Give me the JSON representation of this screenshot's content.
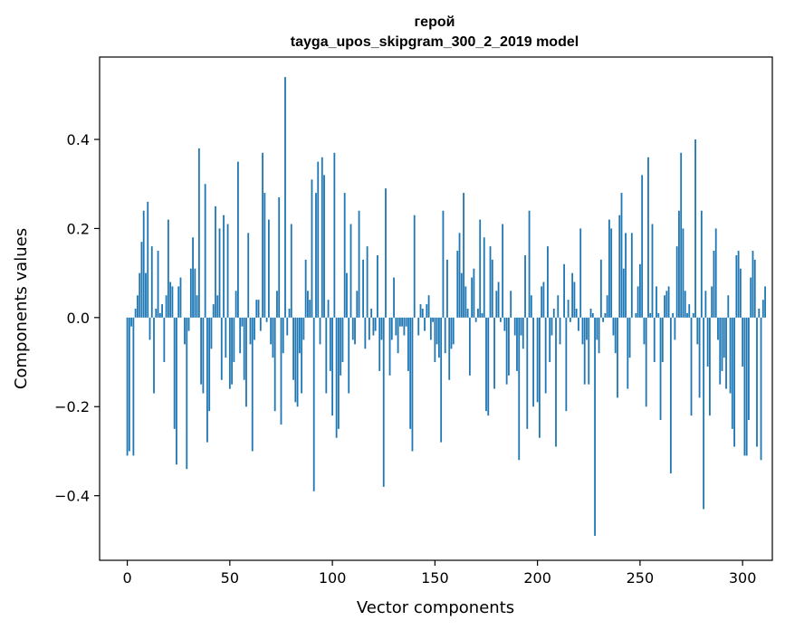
{
  "chart_data": {
    "type": "bar",
    "title": "герой",
    "subtitle": "tayga_upos_skipgram_300_2_2019 model",
    "xlabel": "Vector components",
    "ylabel": "Components values",
    "xlim": [
      -13.5,
      314.5
    ],
    "ylim": [
      -0.545,
      0.585
    ],
    "xticks": [
      0,
      50,
      100,
      150,
      200,
      250,
      300
    ],
    "yticks": [
      -0.4,
      -0.2,
      0.0,
      0.2,
      0.4
    ],
    "ytick_labels": [
      "−0.4",
      "−0.2",
      "0.0",
      "0.2",
      "0.4"
    ],
    "bar_color": "#1f77b4",
    "series": [
      {
        "name": "герой",
        "values": [
          -0.31,
          -0.3,
          -0.02,
          -0.31,
          0.02,
          0.05,
          0.1,
          0.17,
          0.24,
          0.1,
          0.26,
          -0.05,
          0.16,
          -0.17,
          0.02,
          0.15,
          0.01,
          0.03,
          -0.1,
          0.05,
          0.22,
          0.08,
          0.07,
          -0.25,
          -0.33,
          0.07,
          0.09,
          0.0,
          -0.06,
          -0.34,
          -0.03,
          0.11,
          0.18,
          0.11,
          0.05,
          0.38,
          -0.15,
          -0.17,
          0.3,
          -0.28,
          -0.21,
          -0.07,
          0.03,
          0.25,
          0.05,
          0.2,
          -0.14,
          0.23,
          -0.09,
          0.21,
          -0.16,
          -0.15,
          -0.1,
          0.06,
          0.35,
          -0.08,
          -0.02,
          -0.14,
          -0.2,
          0.19,
          -0.06,
          -0.3,
          -0.05,
          0.04,
          0.04,
          -0.03,
          0.37,
          0.28,
          -0.01,
          0.22,
          -0.06,
          -0.09,
          -0.21,
          0.06,
          0.27,
          -0.24,
          -0.08,
          0.54,
          -0.04,
          0.02,
          0.21,
          -0.14,
          -0.19,
          -0.2,
          -0.08,
          -0.17,
          -0.05,
          0.13,
          0.06,
          0.04,
          0.31,
          -0.39,
          0.28,
          0.35,
          -0.06,
          0.36,
          0.32,
          -0.17,
          0.04,
          -0.12,
          -0.22,
          0.37,
          -0.27,
          -0.25,
          -0.13,
          -0.1,
          0.28,
          0.1,
          -0.17,
          0.21,
          -0.05,
          -0.06,
          0.06,
          0.24,
          0.0,
          0.13,
          -0.07,
          0.16,
          -0.05,
          0.02,
          -0.04,
          -0.03,
          0.14,
          -0.12,
          -0.05,
          -0.38,
          0.29,
          0.0,
          -0.13,
          -0.05,
          0.09,
          -0.04,
          -0.08,
          -0.02,
          -0.02,
          -0.04,
          -0.02,
          -0.12,
          -0.25,
          -0.3,
          0.23,
          0.0,
          -0.04,
          0.03,
          0.02,
          -0.03,
          0.03,
          0.05,
          -0.05,
          -0.01,
          -0.1,
          -0.06,
          -0.09,
          -0.28,
          0.24,
          -0.08,
          0.13,
          -0.14,
          -0.07,
          -0.06,
          0.0,
          0.15,
          0.19,
          0.1,
          0.28,
          0.07,
          0.02,
          -0.13,
          0.09,
          0.11,
          -0.01,
          0.02,
          0.22,
          0.01,
          0.18,
          -0.21,
          -0.22,
          0.16,
          0.13,
          -0.16,
          0.06,
          0.08,
          -0.01,
          0.21,
          -0.03,
          -0.15,
          -0.13,
          0.06,
          0.0,
          -0.04,
          -0.12,
          -0.32,
          -0.04,
          -0.07,
          0.14,
          -0.25,
          0.24,
          0.05,
          -0.2,
          0.0,
          -0.19,
          -0.27,
          0.07,
          0.08,
          -0.17,
          0.16,
          -0.1,
          -0.04,
          0.02,
          -0.29,
          0.05,
          -0.06,
          0.0,
          0.12,
          -0.21,
          0.04,
          -0.01,
          0.1,
          0.08,
          0.02,
          -0.03,
          0.2,
          -0.06,
          -0.15,
          -0.05,
          -0.15,
          0.02,
          0.01,
          -0.49,
          -0.05,
          -0.08,
          0.13,
          -0.01,
          0.01,
          0.05,
          0.22,
          0.2,
          -0.04,
          -0.08,
          -0.18,
          0.23,
          0.28,
          0.11,
          0.19,
          -0.16,
          -0.09,
          0.19,
          0.0,
          0.01,
          0.07,
          0.12,
          0.32,
          -0.06,
          -0.2,
          0.36,
          0.01,
          0.21,
          -0.1,
          0.07,
          0.01,
          -0.23,
          -0.1,
          0.05,
          0.06,
          0.07,
          -0.35,
          0.01,
          -0.05,
          0.16,
          0.24,
          0.37,
          0.2,
          0.06,
          0.01,
          0.03,
          -0.22,
          0.01,
          0.4,
          -0.06,
          -0.18,
          0.24,
          -0.43,
          0.06,
          -0.11,
          -0.22,
          0.07,
          0.15,
          0.2,
          -0.05,
          -0.15,
          -0.12,
          -0.09,
          -0.16,
          0.05,
          -0.17,
          -0.25,
          -0.29,
          0.14,
          0.15,
          0.11,
          -0.11,
          -0.31,
          -0.31,
          -0.23,
          0.09,
          0.15,
          0.13,
          -0.29,
          0.02,
          -0.32,
          0.04,
          0.07
        ]
      }
    ]
  }
}
